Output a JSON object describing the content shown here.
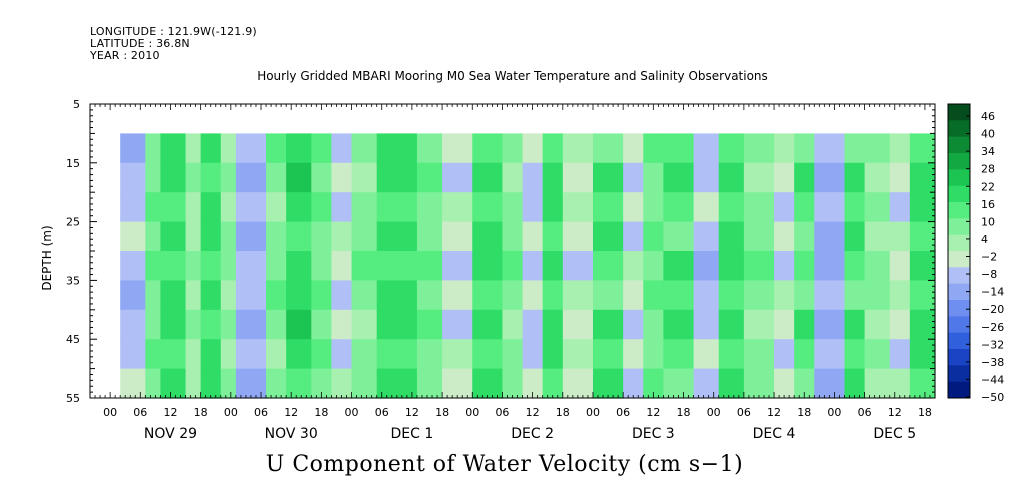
{
  "header": {
    "longitude": "LONGITUDE : 121.9W(-121.9)",
    "latitude": "LATITUDE : 36.8N",
    "year": "YEAR : 2010"
  },
  "title": "Hourly Gridded MBARI Mooring M0 Sea Water Temperature and Salinity Observations",
  "footer_label": "U Component of Water Velocity (cm s−1)",
  "chart_data": {
    "type": "heatmap",
    "title": "Hourly Gridded MBARI Mooring M0 Sea Water Temperature and Salinity Observations",
    "variable": "U Component of Water Velocity (cm s−1)",
    "xlabel": "",
    "ylabel": "DEPTH (m)",
    "ylim": [
      55,
      5
    ],
    "y_inverted": true,
    "yticks": [
      5,
      15,
      25,
      35,
      45,
      55
    ],
    "data_depth_range": [
      10,
      55
    ],
    "x_start_hour": -4,
    "x_end_hour": 164,
    "hour_ticks": [
      "00",
      "06",
      "12",
      "18",
      "00",
      "06",
      "12",
      "18",
      "00",
      "06",
      "12",
      "18",
      "00",
      "06",
      "12",
      "18",
      "00",
      "06",
      "12",
      "18",
      "00",
      "06",
      "12",
      "18",
      "00",
      "06",
      "12",
      "18"
    ],
    "day_labels": [
      "NOV 29",
      "NOV 30",
      "DEC  1",
      "DEC  2",
      "DEC  3",
      "DEC  4",
      "DEC  5"
    ],
    "data_start_hour": 2,
    "data_end_hour": 164,
    "colorbar": {
      "levels": [
        "46",
        "40",
        "34",
        "28",
        "22",
        "16",
        "10",
        "4",
        "−2",
        "−8",
        "−14",
        "−20",
        "−26",
        "−32",
        "−38",
        "−44",
        "−50"
      ],
      "min": -50,
      "max": 46
    },
    "bands": [
      {
        "start": 2,
        "end": 7,
        "value": -10
      },
      {
        "start": 7,
        "end": 10,
        "value": 8
      },
      {
        "start": 10,
        "end": 15,
        "value": 14
      },
      {
        "start": 15,
        "end": 18,
        "value": 3
      },
      {
        "start": 18,
        "end": 22,
        "value": 15
      },
      {
        "start": 22,
        "end": 25,
        "value": 4
      },
      {
        "start": 25,
        "end": 31,
        "value": -12
      },
      {
        "start": 31,
        "end": 35,
        "value": 6
      },
      {
        "start": 35,
        "end": 40,
        "value": 16
      },
      {
        "start": 40,
        "end": 44,
        "value": 8
      },
      {
        "start": 44,
        "end": 48,
        "value": -6
      },
      {
        "start": 48,
        "end": 53,
        "value": 6
      },
      {
        "start": 53,
        "end": 61,
        "value": 14
      },
      {
        "start": 61,
        "end": 66,
        "value": 8
      },
      {
        "start": 66,
        "end": 72,
        "value": -6
      },
      {
        "start": 72,
        "end": 78,
        "value": 14
      },
      {
        "start": 78,
        "end": 82,
        "value": 6
      },
      {
        "start": 82,
        "end": 86,
        "value": -8
      },
      {
        "start": 86,
        "end": 90,
        "value": 14
      },
      {
        "start": 90,
        "end": 96,
        "value": -4
      },
      {
        "start": 96,
        "end": 102,
        "value": 12
      },
      {
        "start": 102,
        "end": 106,
        "value": -6
      },
      {
        "start": 106,
        "end": 110,
        "value": 8
      },
      {
        "start": 110,
        "end": 116,
        "value": 12
      },
      {
        "start": 116,
        "end": 121,
        "value": -10
      },
      {
        "start": 121,
        "end": 126,
        "value": 14
      },
      {
        "start": 126,
        "end": 132,
        "value": 6
      },
      {
        "start": 132,
        "end": 136,
        "value": -6
      },
      {
        "start": 136,
        "end": 140,
        "value": 10
      },
      {
        "start": 140,
        "end": 146,
        "value": -14
      },
      {
        "start": 146,
        "end": 150,
        "value": 12
      },
      {
        "start": 150,
        "end": 155,
        "value": 4
      },
      {
        "start": 155,
        "end": 159,
        "value": -4
      },
      {
        "start": 159,
        "end": 164,
        "value": 14
      }
    ]
  },
  "colors": {
    "ramp": [
      "#001a80",
      "#0a2ea0",
      "#1a44c4",
      "#3060dc",
      "#5078e8",
      "#6e8ef0",
      "#90a8f4",
      "#b0c0f6",
      "#ccecc8",
      "#a8f0b0",
      "#7ef09a",
      "#55ec80",
      "#2edc66",
      "#1cc452",
      "#14a842",
      "#0c8a34",
      "#076c28",
      "#054d1c"
    ],
    "frame": "#000000"
  }
}
